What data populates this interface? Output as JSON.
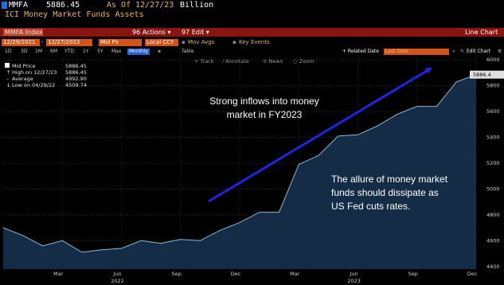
{
  "header": {
    "ticker": "MMFA",
    "price": "5886.45",
    "as_of": "As Of 12/27/23",
    "unit": "Billion",
    "title": "ICI Money Market Funds Assets"
  },
  "toolbar": {
    "index_label": "MMFA Index",
    "actions": "96 Actions ▾",
    "edit": "97 Edit ▾",
    "line_chart": "Line Chart",
    "start_date": "12/29/2021",
    "end_date": "12/27/2023",
    "field": "Mid Px",
    "currency": "Local CCY",
    "mov_avgs": "Mov Avgs",
    "key_events": "Key Events",
    "periods": [
      "1D",
      "3D",
      "1M",
      "6M",
      "YTD",
      "1Y",
      "5Y",
      "Max"
    ],
    "frequency": "Monthly",
    "table": "Table",
    "related_date_label": "+ Related Date",
    "related_date_value": "Last Date",
    "edit_chart": "Edit Chart",
    "tools": [
      "Track",
      "Annotate",
      "News",
      "Zoom"
    ]
  },
  "legend": {
    "mid_price_label": "Mid Price",
    "mid_price_value": "5886.45",
    "high_label": "High on 12/27/23",
    "high_value": "5886.45",
    "average_label": "Average",
    "average_value": "4992.90",
    "low_label": "Low on 04/29/22",
    "low_value": "4509.74"
  },
  "colors": {
    "area_fill": "#152c46",
    "line": "#8fb8d8",
    "arrow": "#2222e6",
    "header_red": "#8a1410",
    "orange": "#d2541b",
    "ticker_amber": "#e8b760"
  },
  "chart_data": {
    "type": "area",
    "title": "ICI Money Market Funds Assets",
    "x": [
      "2021-12",
      "2022-01",
      "2022-02",
      "2022-03",
      "2022-04",
      "2022-05",
      "2022-06",
      "2022-07",
      "2022-08",
      "2022-09",
      "2022-10",
      "2022-11",
      "2022-12",
      "2023-01",
      "2023-02",
      "2023-03",
      "2023-04",
      "2023-05",
      "2023-06",
      "2023-07",
      "2023-08",
      "2023-09",
      "2023-10",
      "2023-11",
      "2023-12"
    ],
    "values": [
      4700,
      4640,
      4560,
      4600,
      4510,
      4530,
      4540,
      4600,
      4580,
      4610,
      4600,
      4680,
      4740,
      4820,
      4820,
      5190,
      5260,
      5410,
      5420,
      5490,
      5580,
      5640,
      5640,
      5830,
      5886
    ],
    "ylim": [
      4380,
      6020
    ],
    "yticks": [
      4400,
      4600,
      4800,
      5000,
      5200,
      5400,
      5600,
      5800,
      6000
    ],
    "xtick_labels": [
      "Mar",
      "Jun",
      "Sep",
      "Dec",
      "Mar",
      "Jun",
      "Sep",
      "Dec"
    ],
    "year_labels": [
      "2022",
      "2023"
    ],
    "last_value_label": "5886.4",
    "grid": true,
    "annotations": [
      "Strong inflows into money market in FY2023",
      "The allure of money market funds should dissipate as US Fed cuts rates."
    ],
    "annotation_lines": [
      [
        "Strong inflows into money",
        "market in FY2023"
      ],
      [
        "The allure of money market",
        "funds should dissipate as",
        "US Fed cuts rates."
      ]
    ]
  }
}
